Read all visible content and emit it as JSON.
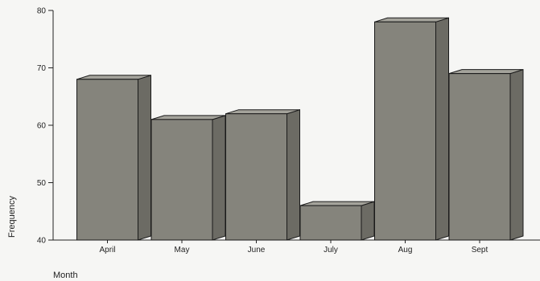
{
  "chart_data": {
    "type": "bar",
    "style": "3d",
    "categories": [
      "April",
      "May",
      "June",
      "July",
      "Aug",
      "Sept"
    ],
    "values": [
      68,
      61,
      62,
      46,
      78,
      69
    ],
    "xlabel": "Month",
    "ylabel": "Frequency",
    "ylim": [
      40,
      80
    ],
    "yticks": [
      40,
      50,
      60,
      70,
      80
    ],
    "grid": false,
    "legend": "none",
    "colors": {
      "bar_front": "#85847c",
      "bar_top": "#a4a39b",
      "bar_side": "#6c6b64",
      "outline": "#1a1a1a"
    }
  }
}
